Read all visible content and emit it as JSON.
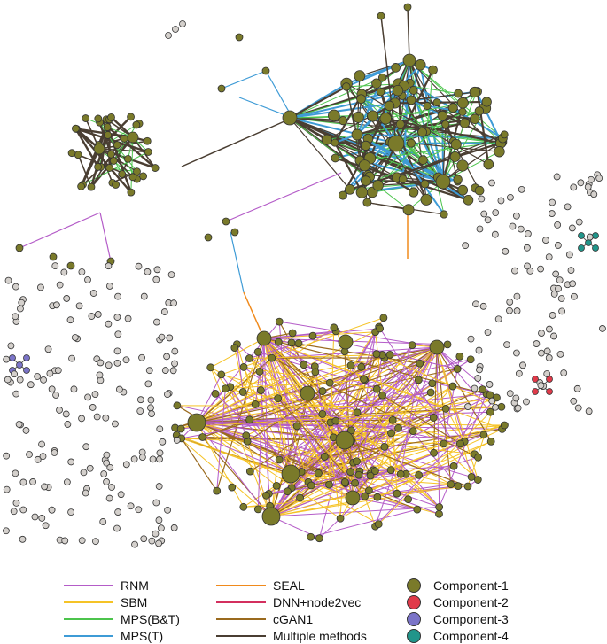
{
  "legend": {
    "methods": [
      {
        "label": "RNM",
        "color": "#b45cc8"
      },
      {
        "label": "SBM",
        "color": "#f5c326"
      },
      {
        "label": "MPS(B&T)",
        "color": "#4cc44c"
      },
      {
        "label": "MPS(T)",
        "color": "#3e9bd6"
      },
      {
        "label": "SEAL",
        "color": "#f08a1c"
      },
      {
        "label": "DNN+node2vec",
        "color": "#d32f5e"
      },
      {
        "label": "cGAN1",
        "color": "#9a6a1e"
      },
      {
        "label": "Multiple methods",
        "color": "#4a3e32"
      }
    ],
    "components": [
      {
        "label": "Component-1",
        "color": "#7a7a2a"
      },
      {
        "label": "Component-2",
        "color": "#e03a4a"
      },
      {
        "label": "Component-3",
        "color": "#7b74c8"
      },
      {
        "label": "Component-4",
        "color": "#21958a"
      }
    ]
  },
  "node_colors": {
    "isolated": "#d4d0cc",
    "stroke": "#333333"
  }
}
